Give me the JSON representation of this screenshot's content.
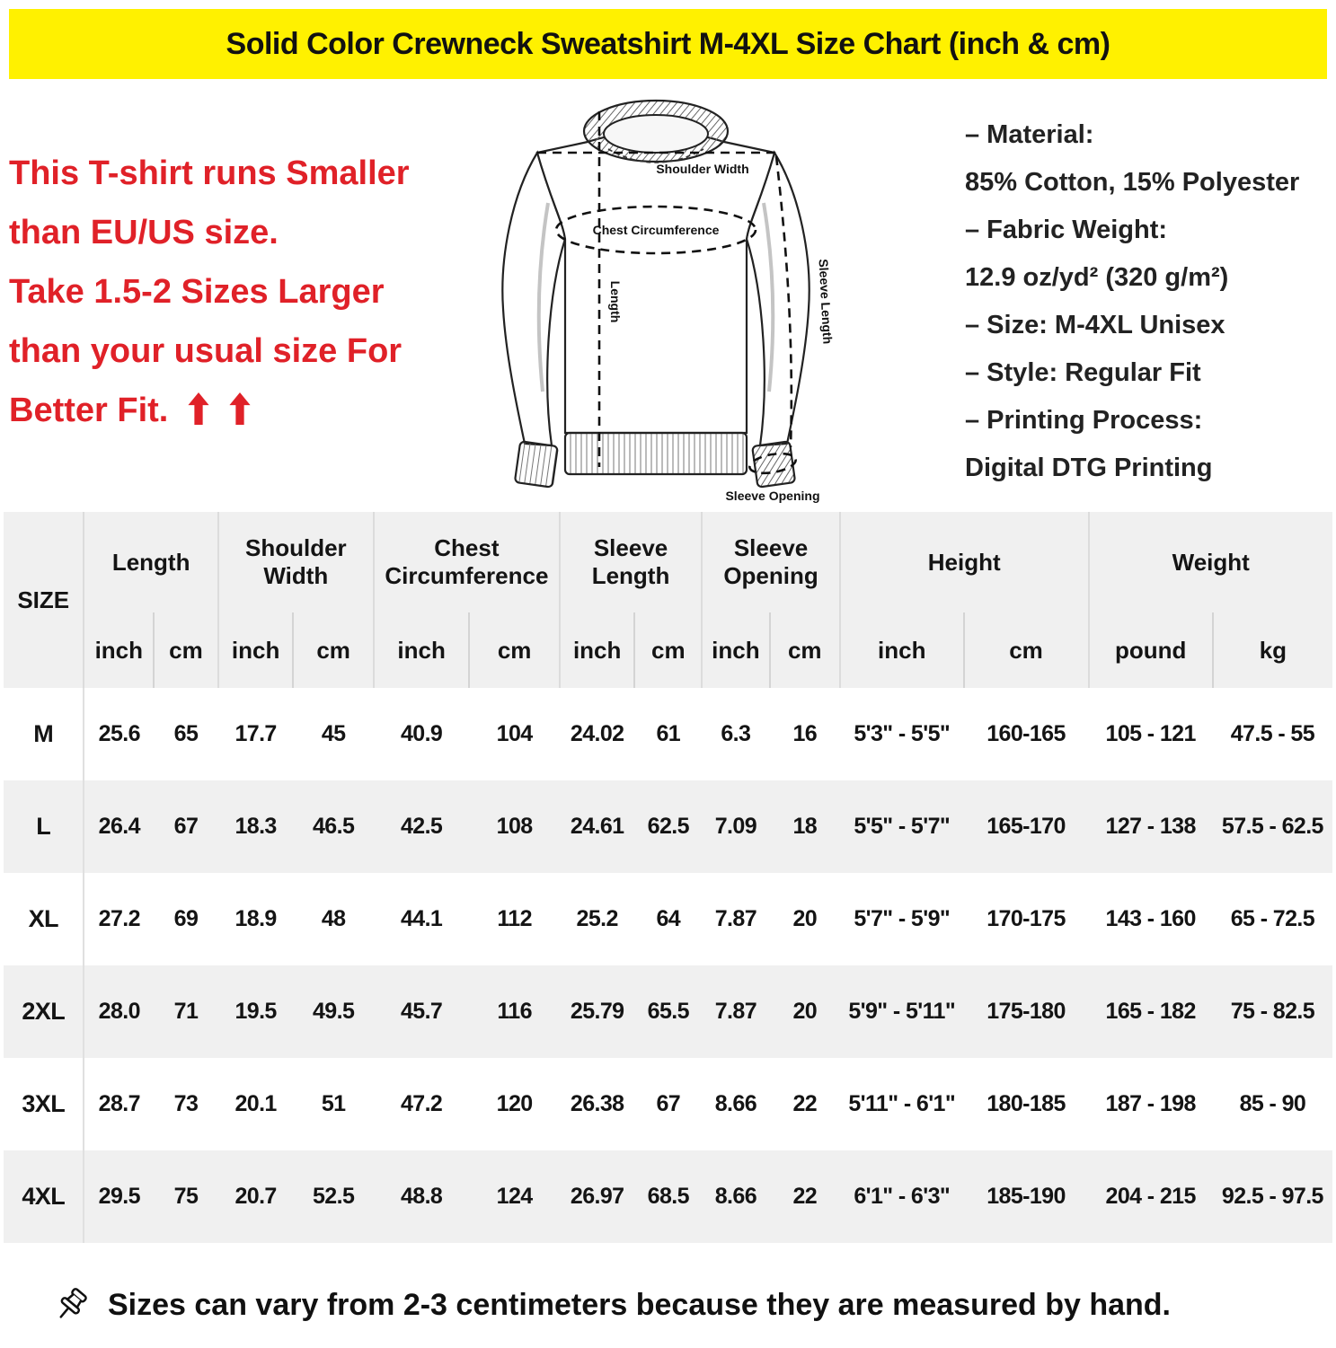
{
  "banner": {
    "title": "Solid Color Crewneck Sweatshirt M-4XL Size Chart (inch & cm)",
    "bg": "#FFF100"
  },
  "notice": {
    "color": "#E02128",
    "lines": [
      "This T-shirt runs Smaller",
      "than EU/US size.",
      "Take 1.5-2 Sizes Larger",
      "than your usual size For",
      "Better Fit."
    ],
    "arrow_icon": "up-arrow"
  },
  "diagram": {
    "labels": {
      "shoulder_width": "Shoulder Width",
      "chest_circumference": "Chest Circumference",
      "length": "Length",
      "sleeve_length": "Sleeve Length",
      "sleeve_opening": "Sleeve Opening"
    }
  },
  "details": {
    "lines": [
      "– Material:",
      "85% Cotton, 15% Polyester",
      "– Fabric Weight:",
      "12.9 oz/yd² (320 g/m²)",
      "– Size: M-4XL Unisex",
      "– Style: Regular Fit",
      "– Printing Process:",
      "Digital DTG Printing"
    ]
  },
  "table": {
    "size_header": "SIZE",
    "groups": [
      {
        "label": "Length",
        "units": [
          "inch",
          "cm"
        ]
      },
      {
        "label": "Shoulder Width",
        "units": [
          "inch",
          "cm"
        ]
      },
      {
        "label": "Chest Circumference",
        "units": [
          "inch",
          "cm"
        ]
      },
      {
        "label": "Sleeve Length",
        "units": [
          "inch",
          "cm"
        ]
      },
      {
        "label": "Sleeve Opening",
        "units": [
          "inch",
          "cm"
        ]
      },
      {
        "label": "Height",
        "units": [
          "inch",
          "cm"
        ]
      },
      {
        "label": "Weight",
        "units": [
          "pound",
          "kg"
        ]
      }
    ],
    "rows": [
      {
        "size": "M",
        "values": [
          "25.6",
          "65",
          "17.7",
          "45",
          "40.9",
          "104",
          "24.02",
          "61",
          "6.3",
          "16",
          "5'3\" - 5'5\"",
          "160-165",
          "105 - 121",
          "47.5 - 55"
        ]
      },
      {
        "size": "L",
        "values": [
          "26.4",
          "67",
          "18.3",
          "46.5",
          "42.5",
          "108",
          "24.61",
          "62.5",
          "7.09",
          "18",
          "5'5\" - 5'7\"",
          "165-170",
          "127 - 138",
          "57.5 - 62.5"
        ]
      },
      {
        "size": "XL",
        "values": [
          "27.2",
          "69",
          "18.9",
          "48",
          "44.1",
          "112",
          "25.2",
          "64",
          "7.87",
          "20",
          "5'7\" - 5'9\"",
          "170-175",
          "143 - 160",
          "65 - 72.5"
        ]
      },
      {
        "size": "2XL",
        "values": [
          "28.0",
          "71",
          "19.5",
          "49.5",
          "45.7",
          "116",
          "25.79",
          "65.5",
          "7.87",
          "20",
          "5'9\" - 5'11\"",
          "175-180",
          "165 - 182",
          "75 - 82.5"
        ]
      },
      {
        "size": "3XL",
        "values": [
          "28.7",
          "73",
          "20.1",
          "51",
          "47.2",
          "120",
          "26.38",
          "67",
          "8.66",
          "22",
          "5'11\" - 6'1\"",
          "180-185",
          "187 - 198",
          "85 - 90"
        ]
      },
      {
        "size": "4XL",
        "values": [
          "29.5",
          "75",
          "20.7",
          "52.5",
          "48.8",
          "124",
          "26.97",
          "68.5",
          "8.66",
          "22",
          "6'1\" - 6'3\"",
          "185-190",
          "204 - 215",
          "92.5 - 97.5"
        ]
      }
    ]
  },
  "footnote": {
    "icon": "pushpin",
    "text": "Sizes can vary from 2-3 centimeters because they are measured by hand."
  }
}
